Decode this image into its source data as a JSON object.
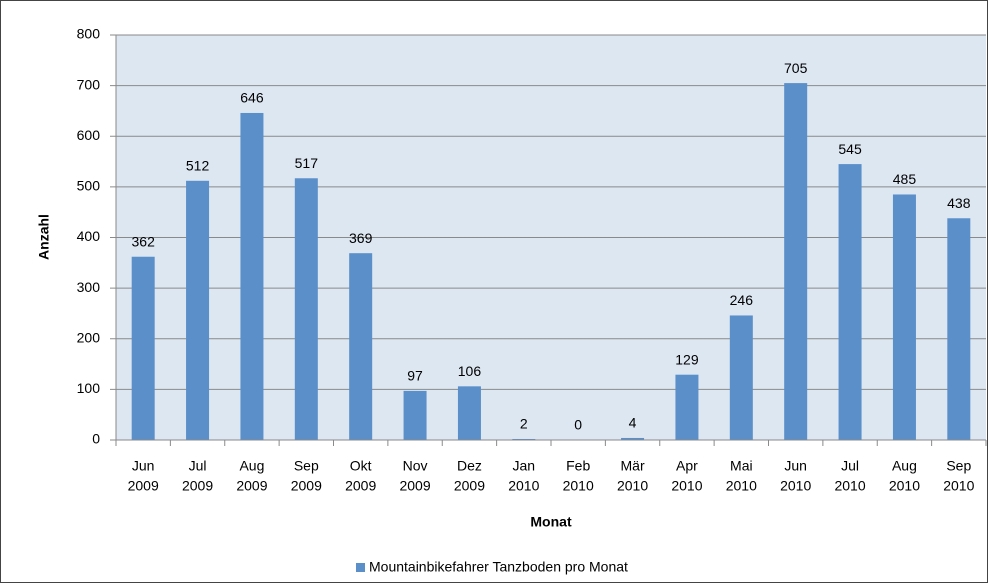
{
  "chart_data": {
    "type": "bar",
    "categories": [
      [
        "Jun",
        "2009"
      ],
      [
        "Jul",
        "2009"
      ],
      [
        "Aug",
        "2009"
      ],
      [
        "Sep",
        "2009"
      ],
      [
        "Okt",
        "2009"
      ],
      [
        "Nov",
        "2009"
      ],
      [
        "Dez",
        "2009"
      ],
      [
        "Jan",
        "2010"
      ],
      [
        "Feb",
        "2010"
      ],
      [
        "Mär",
        "2010"
      ],
      [
        "Apr",
        "2010"
      ],
      [
        "Mai",
        "2010"
      ],
      [
        "Jun",
        "2010"
      ],
      [
        "Jul",
        "2010"
      ],
      [
        "Aug",
        "2010"
      ],
      [
        "Sep",
        "2010"
      ]
    ],
    "series": [
      {
        "name": "Mountainbikefahrer Tanzboden pro Monat",
        "color": "#5b8fc9",
        "values": [
          362,
          512,
          646,
          517,
          369,
          97,
          106,
          2,
          0,
          4,
          129,
          246,
          705,
          545,
          485,
          438
        ]
      }
    ],
    "xlabel": "Monat",
    "ylabel": "Anzahl",
    "ylim": [
      0,
      800
    ],
    "yticks": [
      0,
      100,
      200,
      300,
      400,
      500,
      600,
      700,
      800
    ],
    "grid": true
  }
}
